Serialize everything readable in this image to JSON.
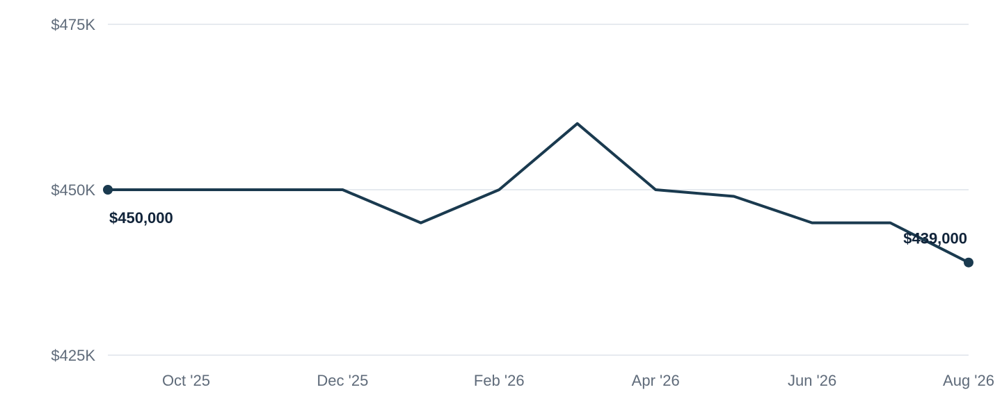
{
  "chart_data": {
    "type": "line",
    "x": [
      "Sep '25",
      "Oct '25",
      "Nov '25",
      "Dec '25",
      "Jan '26",
      "Feb '26",
      "Mar '26",
      "Apr '26",
      "May '26",
      "Jun '26",
      "Jul '26",
      "Aug '26"
    ],
    "x_tick_labels": [
      "Oct '25",
      "Dec '25",
      "Feb '26",
      "Apr '26",
      "Jun '26",
      "Aug '26"
    ],
    "series": [
      {
        "values": [
          450000,
          450000,
          450000,
          450000,
          445000,
          450000,
          460000,
          450000,
          449000,
          445000,
          445000,
          439000
        ],
        "color": "#1a3a4f"
      }
    ],
    "ylim": [
      425000,
      475000
    ],
    "y_ticks": [
      425000,
      450000,
      475000
    ],
    "y_tick_labels": [
      "$425K",
      "$450K",
      "$475K"
    ],
    "data_labels": [
      {
        "index": 0,
        "text": "$450,000"
      },
      {
        "index": 11,
        "text": "$439,000"
      }
    ],
    "grid": true,
    "legend": "none"
  }
}
